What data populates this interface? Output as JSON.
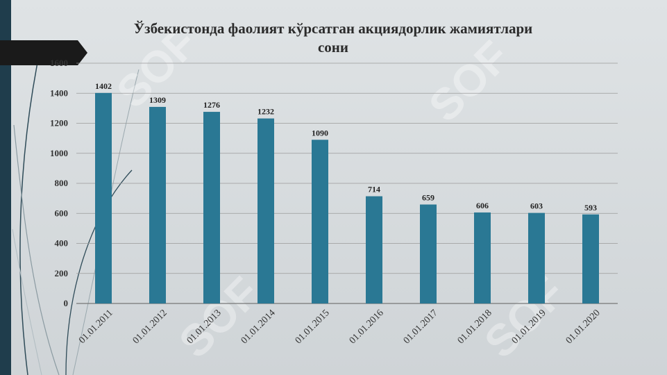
{
  "slide": {
    "title_line1": "Ўзбекистонда фаолият кўрсатган акциядорлик жамиятлари",
    "title_line2": "сони",
    "watermark": "SOF",
    "colors": {
      "bar": "#2a7894",
      "sidebar": "#1f3d4c",
      "tab": "#1a1a1a"
    }
  },
  "chart_data": {
    "type": "bar",
    "title": "Ўзбекистонда фаолият кўрсатган акциядорлик жамиятлари сони",
    "categories": [
      "01.01.2011",
      "01.01.2012",
      "01.01.2013",
      "01.01.2014",
      "01.01.2015",
      "01.01.2016",
      "01.01.2017",
      "01.01.2018",
      "01.01.2019",
      "01.01.2020"
    ],
    "values": [
      1402,
      1309,
      1276,
      1232,
      1090,
      714,
      659,
      606,
      603,
      593
    ],
    "yticks": [
      0,
      200,
      400,
      600,
      800,
      1000,
      1200,
      1400,
      1600
    ],
    "ylim": [
      0,
      1600
    ],
    "xlabel": "",
    "ylabel": "",
    "grid": true,
    "legend": "none",
    "data_labels": true
  }
}
